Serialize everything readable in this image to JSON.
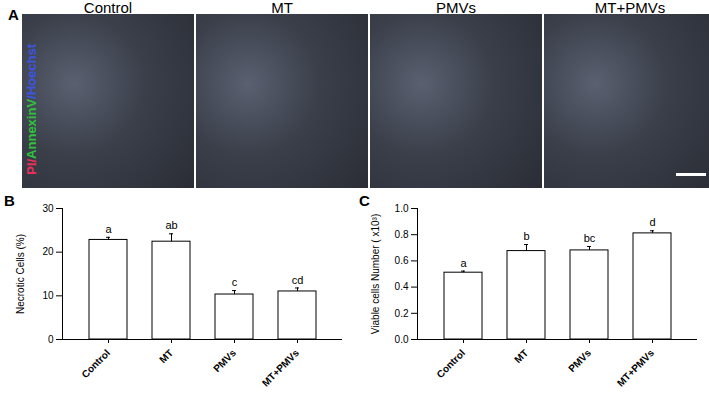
{
  "panel_a": {
    "label": "A",
    "titles": [
      "Control",
      "MT",
      "PMVs",
      "MT+PMVs"
    ],
    "stain_label": [
      {
        "text": "PI/",
        "color": "#e8305a"
      },
      {
        "text": "AnnexinV",
        "color": "#2fc23a"
      },
      {
        "text": "/Hoechst",
        "color": "#3d55e0"
      }
    ]
  },
  "chart_data": [
    {
      "type": "bar",
      "panel": "B",
      "y_label": "Necrotic Cells (%)",
      "categories": [
        "Control",
        "MT",
        "PMVs",
        "MT+PMVs"
      ],
      "values": [
        22.8,
        22.4,
        10.3,
        11.0
      ],
      "errors": [
        0.6,
        1.8,
        0.9,
        0.8
      ],
      "significance_letters": [
        "a",
        "ab",
        "c",
        "cd"
      ],
      "color": "#ffffff",
      "ylim": [
        0,
        30
      ],
      "yticks": [
        0,
        10,
        20,
        30
      ]
    },
    {
      "type": "bar",
      "panel": "C",
      "y_label": "Viable cells Number ( x10³)",
      "categories": [
        "Control",
        "MT",
        "PMVs",
        "MT+PMVs"
      ],
      "values": [
        0.51,
        0.675,
        0.68,
        0.81
      ],
      "errors": [
        0.012,
        0.05,
        0.03,
        0.02
      ],
      "significance_letters": [
        "a",
        "b",
        "bc",
        "d"
      ],
      "color": "#ffffff",
      "ylim": [
        0,
        1.0
      ],
      "yticks": [
        {
          "value": 0,
          "label": "0.0"
        },
        0.2,
        0.4,
        0.6,
        0.8,
        {
          "value": 1.0,
          "label": "1.0"
        }
      ]
    }
  ]
}
